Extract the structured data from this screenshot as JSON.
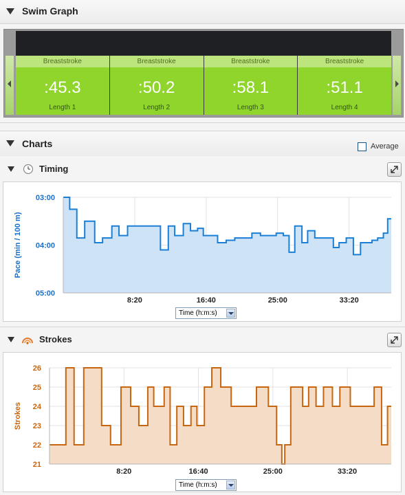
{
  "swim_graph": {
    "title": "Swim Graph",
    "lengths": [
      {
        "stroke": "Breaststroke",
        "time": ":45.3",
        "label": "Length 1"
      },
      {
        "stroke": "Breaststroke",
        "time": ":50.2",
        "label": "Length 2"
      },
      {
        "stroke": "Breaststroke",
        "time": ":58.1",
        "label": "Length 3"
      },
      {
        "stroke": "Breaststroke",
        "time": ":51.1",
        "label": "Length 4"
      }
    ]
  },
  "charts": {
    "title": "Charts",
    "average_label": "Average",
    "average_checked": false
  },
  "timing": {
    "title": "Timing",
    "axis_select": "Time (h:m:s)"
  },
  "strokes": {
    "title": "Strokes",
    "axis_select": "Time (h:m:s)"
  },
  "colors": {
    "timing_line": "#1a7fd6",
    "timing_fill": "#cfe3f7",
    "timing_axis_text": "#1a6fc8",
    "strokes_line": "#c8660f",
    "strokes_fill": "#f5dcc6",
    "strokes_axis_text": "#c8660f",
    "length_green": "#8fd52c"
  },
  "chart_data": [
    {
      "type": "line",
      "name": "timing",
      "ylabel": "Pace (min / 100 m)",
      "xlabel": "",
      "y_tick_labels": [
        "03:00",
        "04:00",
        "05:00"
      ],
      "y_ticks_min": [
        3,
        4,
        5
      ],
      "ylim_min": [
        3,
        5
      ],
      "y_inverted": true,
      "x_tick_labels": [
        "8:20",
        "16:40",
        "25:00",
        "33:20"
      ],
      "x_ticks_sec": [
        500,
        1000,
        1500,
        2000
      ],
      "xlim_sec": [
        0,
        2295
      ],
      "grid": true,
      "x_sec": [
        0,
        45,
        95,
        150,
        220,
        275,
        340,
        390,
        450,
        510,
        570,
        625,
        680,
        735,
        780,
        840,
        890,
        940,
        980,
        1030,
        1080,
        1140,
        1200,
        1260,
        1320,
        1380,
        1430,
        1490,
        1540,
        1580,
        1620,
        1670,
        1710,
        1760,
        1800,
        1850,
        1890,
        1930,
        1980,
        2030,
        2080,
        2120,
        2160,
        2200,
        2240,
        2270
      ],
      "y_min": [
        3.0,
        3.25,
        3.85,
        3.5,
        3.95,
        3.85,
        3.6,
        3.8,
        3.6,
        3.6,
        3.6,
        3.6,
        4.1,
        3.6,
        3.8,
        3.55,
        3.7,
        3.65,
        3.8,
        3.8,
        3.95,
        3.9,
        3.85,
        3.85,
        3.75,
        3.8,
        3.8,
        3.75,
        3.8,
        4.15,
        3.6,
        3.95,
        3.7,
        3.85,
        3.85,
        3.85,
        4.05,
        3.95,
        3.85,
        4.2,
        3.95,
        3.95,
        3.9,
        3.85,
        3.75,
        3.45
      ]
    },
    {
      "type": "line",
      "name": "strokes",
      "ylabel": "Strokes",
      "xlabel": "",
      "y_ticks": [
        21,
        22,
        23,
        24,
        25,
        26
      ],
      "ylim": [
        21,
        26
      ],
      "x_tick_labels": [
        "8:20",
        "16:40",
        "25:00",
        "33:20"
      ],
      "x_ticks_sec": [
        500,
        1000,
        1500,
        2000
      ],
      "xlim_sec": [
        0,
        2295
      ],
      "grid": true,
      "x_sec": [
        0,
        110,
        165,
        230,
        350,
        410,
        480,
        545,
        600,
        660,
        700,
        770,
        810,
        855,
        900,
        950,
        990,
        1040,
        1090,
        1150,
        1220,
        1300,
        1390,
        1470,
        1525,
        1560,
        1580,
        1620,
        1700,
        1740,
        1790,
        1840,
        1900,
        1950,
        2020,
        2100,
        2180,
        2230,
        2270
      ],
      "y": [
        22,
        26,
        22,
        26,
        23,
        22,
        25,
        24,
        23,
        25,
        24,
        25,
        22,
        24,
        23,
        24,
        23,
        25,
        26,
        25,
        24,
        24,
        25,
        24,
        22,
        21,
        22,
        25,
        24,
        25,
        24,
        25,
        24,
        25,
        24,
        24,
        25,
        22,
        24
      ]
    }
  ]
}
